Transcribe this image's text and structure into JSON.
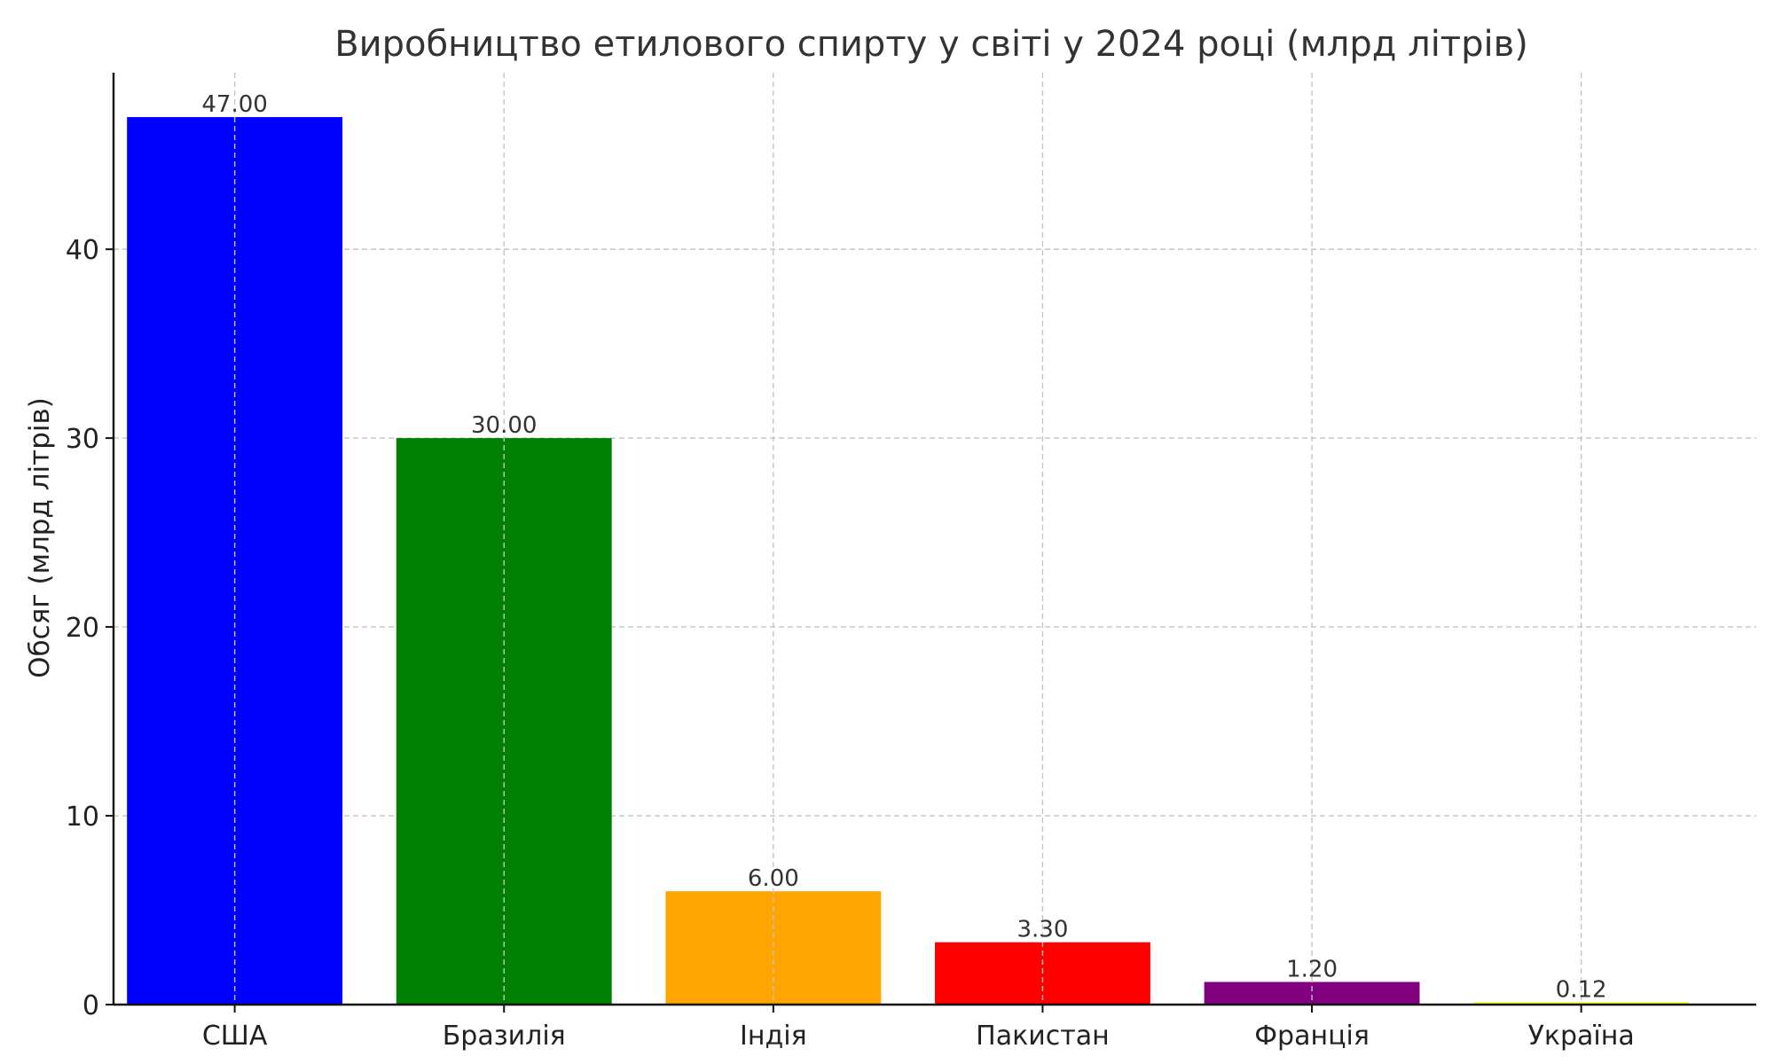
{
  "chart_data": {
    "type": "bar",
    "title": "Виробництво етилового спирту у світі у 2024 році (млрд літрів)",
    "xlabel": "",
    "ylabel": "Обсяг (млрд літрів)",
    "categories": [
      "США",
      "Бразилія",
      "Індія",
      "Пакистан",
      "Франція",
      "Україна"
    ],
    "values": [
      47.0,
      30.0,
      6.0,
      3.3,
      1.2,
      0.12
    ],
    "data_labels": [
      "47.00",
      "30.00",
      "6.00",
      "3.30",
      "1.20",
      "0.12"
    ],
    "colors": [
      "#0000ff",
      "#008000",
      "#ffa500",
      "#ff0000",
      "#800080",
      "#ffff00"
    ],
    "ylim": [
      0,
      49.35
    ],
    "yticks": [
      0,
      10,
      20,
      30,
      40
    ],
    "ytick_labels": [
      "0",
      "10",
      "20",
      "30",
      "40"
    ],
    "grid": true,
    "legend": "none"
  }
}
